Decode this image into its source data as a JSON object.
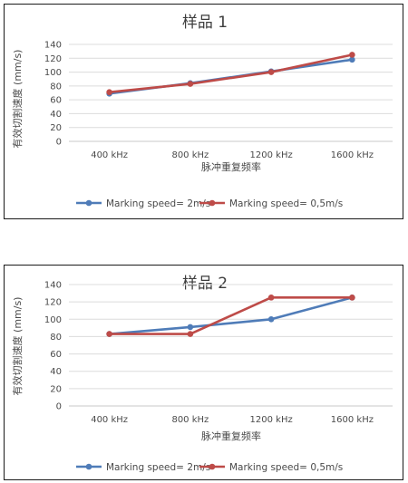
{
  "chart_data": [
    {
      "type": "line",
      "title": "样品 1",
      "xlabel": "脉冲重复频率",
      "ylabel": "有效切割速度 (mm/s)",
      "categories": [
        "400 kHz",
        "800 kHz",
        "1200 kHz",
        "1600 kHz"
      ],
      "yticks": [
        "0",
        "20",
        "40",
        "60",
        "80",
        "100",
        "120",
        "140"
      ],
      "ylim": [
        0,
        140
      ],
      "grid": true,
      "legend": "bottom",
      "series": [
        {
          "name": "Marking speed= 2m/s",
          "color": "#4f7cb8",
          "values": [
            69,
            84,
            101,
            118
          ]
        },
        {
          "name": "Marking speed= 0,5m/s",
          "color": "#be4b48",
          "values": [
            71,
            83,
            100,
            125
          ]
        }
      ]
    },
    {
      "type": "line",
      "title": "样品 2",
      "xlabel": "脉冲重复频率",
      "ylabel": "有效切割速度 (mm/s)",
      "categories": [
        "400 kHz",
        "800 kHz",
        "1200 kHz",
        "1600 kHz"
      ],
      "yticks": [
        "0",
        "20",
        "40",
        "60",
        "80",
        "100",
        "120",
        "140"
      ],
      "ylim": [
        0,
        140
      ],
      "grid": true,
      "legend": "bottom",
      "series": [
        {
          "name": "Marking speed= 2m/s",
          "color": "#4f7cb8",
          "values": [
            83,
            91,
            100,
            125
          ]
        },
        {
          "name": "Marking speed= 0,5m/s",
          "color": "#be4b48",
          "values": [
            83,
            83,
            125,
            125
          ]
        }
      ]
    }
  ]
}
